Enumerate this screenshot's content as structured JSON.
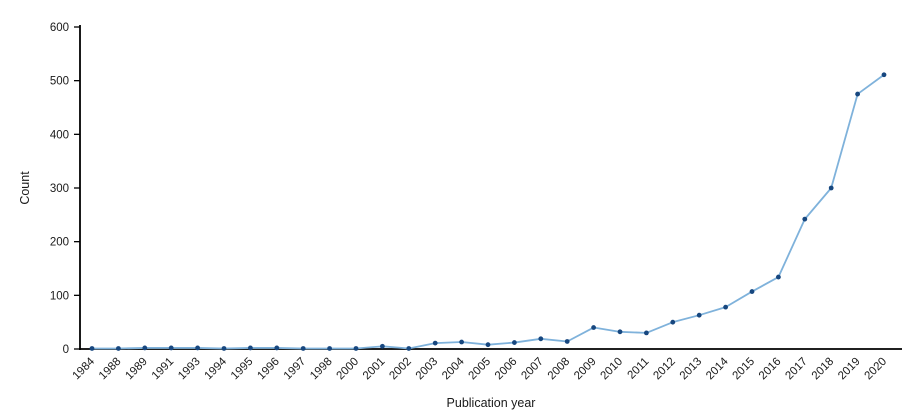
{
  "chart_data": {
    "type": "line",
    "title": "",
    "xlabel": "Publication year",
    "ylabel": "Count",
    "categories": [
      "1984",
      "1988",
      "1989",
      "1991",
      "1993",
      "1994",
      "1995",
      "1996",
      "1997",
      "1998",
      "2000",
      "2001",
      "2002",
      "2003",
      "2004",
      "2005",
      "2006",
      "2007",
      "2008",
      "2009",
      "2010",
      "2011",
      "2012",
      "2013",
      "2014",
      "2015",
      "2016",
      "2017",
      "2018",
      "2019",
      "2020"
    ],
    "series": [
      {
        "name": "Count",
        "values": [
          1,
          1,
          2,
          2,
          2,
          1,
          2,
          2,
          1,
          1,
          1,
          5,
          1,
          11,
          13,
          8,
          12,
          19,
          14,
          40,
          32,
          30,
          50,
          63,
          78,
          107,
          134,
          242,
          300,
          475,
          511
        ]
      }
    ],
    "ylim": [
      0,
      600
    ],
    "yticks": [
      0,
      100,
      200,
      300,
      400,
      500,
      600
    ],
    "xtick_rotation_deg": -45,
    "grid": false,
    "legend_position": "none",
    "colors": {
      "line": "#7FB2DB",
      "marker": "#17477F",
      "axis": "#000000",
      "tick_text": "#1a1a1a"
    }
  }
}
